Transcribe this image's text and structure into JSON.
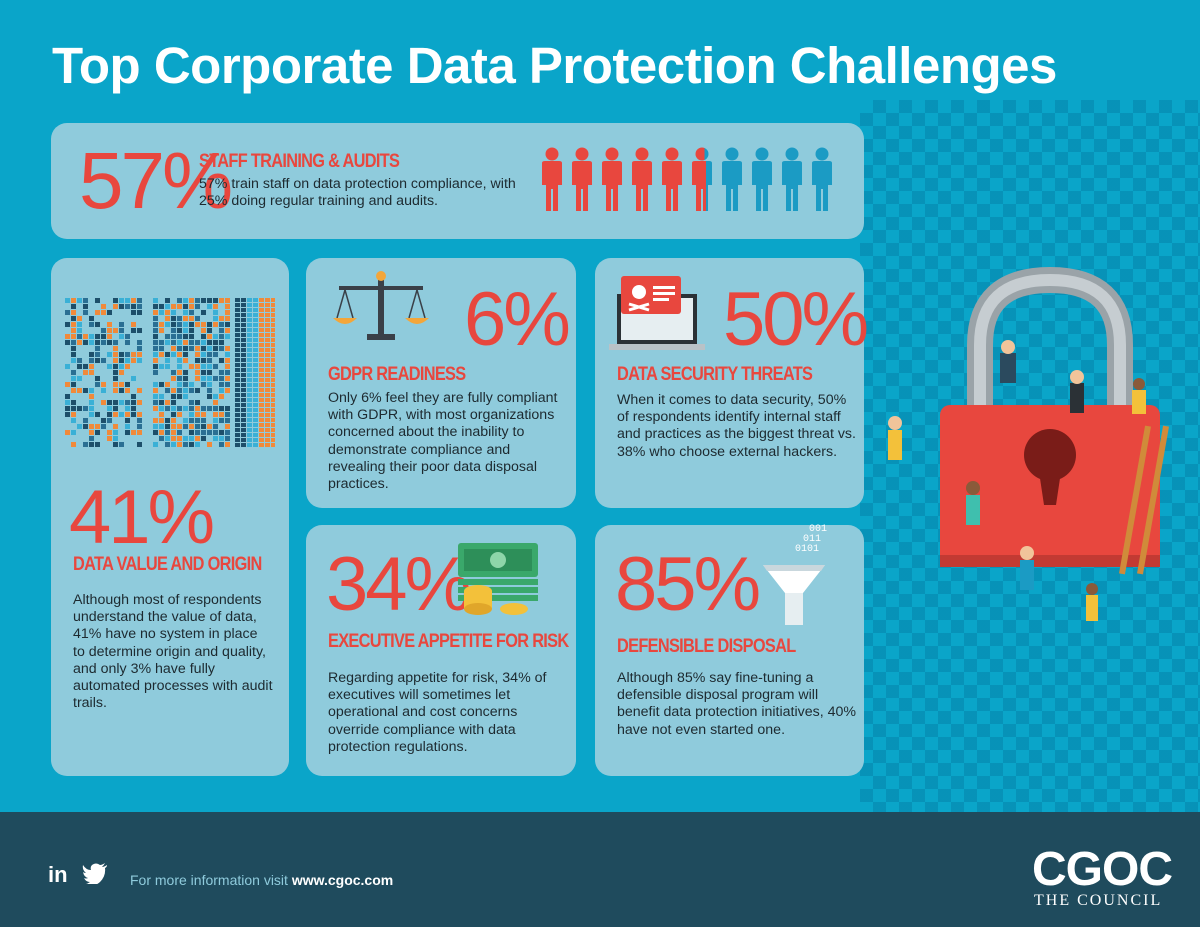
{
  "title": "Top Corporate Data Protection Challenges",
  "staff": {
    "stat": "57%",
    "heading": "STAFF TRAINING & AUDITS",
    "text": "57% train staff on data protection compliance, with 25% doing regular training and audits.",
    "people_total": 10,
    "people_highlighted": 5.7
  },
  "data_value": {
    "stat": "41%",
    "heading": "DATA VALUE AND ORIGIN",
    "text": "Although most of respondents understand the value of data, 41% have no system in place to determine origin and quality, and only 3% have fully automated processes with audit trails."
  },
  "gdpr": {
    "stat": "6%",
    "heading": "GDPR READINESS",
    "text": "Only 6% feel they are fully compliant with GDPR, with most organizations concerned about the inability to demonstrate compliance and revealing their poor data disposal practices."
  },
  "security": {
    "stat": "50%",
    "heading": "DATA SECURITY THREATS",
    "text": "When it comes to data security, 50% of respondents identify internal staff and practices as the biggest threat vs. 38% who choose external hackers."
  },
  "risk": {
    "stat": "34%",
    "heading": "EXECUTIVE APPETITE FOR RISK",
    "text": "Regarding appetite for risk, 34% of executives will sometimes let operational and cost concerns override compliance with data protection regulations."
  },
  "disposal": {
    "stat": "85%",
    "heading": "DEFENSIBLE DISPOSAL",
    "text": "Although 85% say fine-tuning a defensible disposal program will benefit data protection initiatives, 40% have not even started one.",
    "binary": [
      "001",
      "011",
      "0101"
    ]
  },
  "footer": {
    "social_in": "in",
    "info_prefix": "For more information visit ",
    "info_url": "www.cgoc.com",
    "logo": "CGOC",
    "tagline": "THE COUNCIL"
  },
  "colors": {
    "background": "#0aa5c9",
    "card": "#8fcbdc",
    "accent_red": "#e8473e",
    "blue_person": "#1b9bc4",
    "footer": "#1f4b5d"
  }
}
